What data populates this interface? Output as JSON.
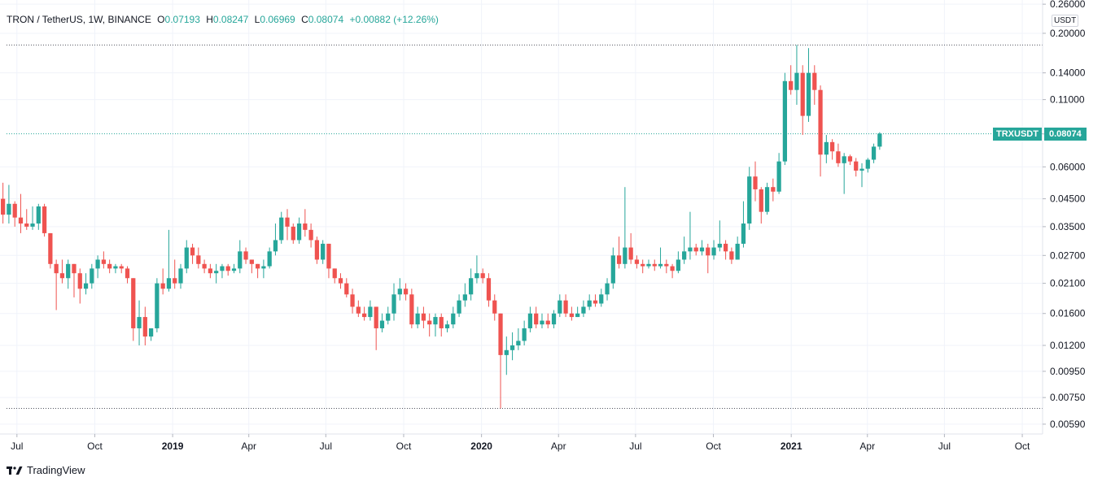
{
  "header": {
    "symbol_line": "TRON / TetherUS, 1W, BINANCE",
    "open_label": "O",
    "open": "0.07193",
    "high_label": "H",
    "high": "0.08247",
    "low_label": "L",
    "low": "0.06969",
    "close_label": "C",
    "close": "0.08074",
    "change": "+0.00882 (+12.26%)"
  },
  "price_scale": {
    "currency_badge": "USDT",
    "ticks": [
      "0.26000",
      "0.20000",
      "0.14000",
      "0.11000",
      "0.08074",
      "0.06000",
      "0.04500",
      "0.03500",
      "0.02700",
      "0.02100",
      "0.01600",
      "0.01200",
      "0.00950",
      "0.00750",
      "0.00590"
    ]
  },
  "symbol_tag": "TRXUSDT",
  "last_price": "0.08074",
  "brand": "TradingView",
  "colors": {
    "up": "#26a69a",
    "down": "#ef5350",
    "grid": "#f0f3fa",
    "text": "#131722"
  },
  "chart_data": {
    "type": "candlestick",
    "scale": "log",
    "ylim": [
      0.0054,
      0.27
    ],
    "xlim": [
      "2018-06-11",
      "2021-10-25"
    ],
    "time_ticks": [
      {
        "date": "2018-07-01",
        "label": "Jul",
        "bold": false
      },
      {
        "date": "2018-10-01",
        "label": "Oct",
        "bold": false
      },
      {
        "date": "2019-01-01",
        "label": "2019",
        "bold": true
      },
      {
        "date": "2019-04-01",
        "label": "Apr",
        "bold": false
      },
      {
        "date": "2019-07-01",
        "label": "Jul",
        "bold": false
      },
      {
        "date": "2019-10-01",
        "label": "Oct",
        "bold": false
      },
      {
        "date": "2020-01-01",
        "label": "2020",
        "bold": true
      },
      {
        "date": "2020-04-01",
        "label": "Apr",
        "bold": false
      },
      {
        "date": "2020-07-01",
        "label": "Jul",
        "bold": false
      },
      {
        "date": "2020-10-01",
        "label": "Oct",
        "bold": false
      },
      {
        "date": "2021-01-01",
        "label": "2021",
        "bold": true
      },
      {
        "date": "2021-04-01",
        "label": "Apr",
        "bold": false
      },
      {
        "date": "2021-07-01",
        "label": "Jul",
        "bold": false
      },
      {
        "date": "2021-10-01",
        "label": "Oct",
        "bold": false
      }
    ],
    "reference_lines": [
      0.18,
      0.0808,
      0.0068
    ],
    "first_candle": "2018-06-11",
    "candles": [
      [
        0.045,
        0.039,
        0.052,
        0.036
      ],
      [
        0.039,
        0.043,
        0.051,
        0.036
      ],
      [
        0.043,
        0.038,
        0.044,
        0.035
      ],
      [
        0.038,
        0.036,
        0.047,
        0.033
      ],
      [
        0.036,
        0.035,
        0.041,
        0.034
      ],
      [
        0.035,
        0.036,
        0.042,
        0.034
      ],
      [
        0.036,
        0.042,
        0.043,
        0.034
      ],
      [
        0.042,
        0.033,
        0.043,
        0.032
      ],
      [
        0.033,
        0.025,
        0.033,
        0.024
      ],
      [
        0.025,
        0.023,
        0.026,
        0.0165
      ],
      [
        0.023,
        0.022,
        0.026,
        0.021
      ],
      [
        0.022,
        0.025,
        0.026,
        0.02
      ],
      [
        0.025,
        0.023,
        0.025,
        0.0185
      ],
      [
        0.023,
        0.02,
        0.024,
        0.0175
      ],
      [
        0.02,
        0.021,
        0.023,
        0.019
      ],
      [
        0.021,
        0.024,
        0.025,
        0.02
      ],
      [
        0.024,
        0.026,
        0.027,
        0.022
      ],
      [
        0.026,
        0.025,
        0.028,
        0.024
      ],
      [
        0.025,
        0.024,
        0.026,
        0.023
      ],
      [
        0.024,
        0.0245,
        0.025,
        0.023
      ],
      [
        0.0245,
        0.024,
        0.025,
        0.023
      ],
      [
        0.024,
        0.022,
        0.0245,
        0.021
      ],
      [
        0.022,
        0.014,
        0.022,
        0.0125
      ],
      [
        0.014,
        0.0155,
        0.018,
        0.012
      ],
      [
        0.0155,
        0.013,
        0.017,
        0.012
      ],
      [
        0.013,
        0.014,
        0.014,
        0.0125
      ],
      [
        0.014,
        0.021,
        0.022,
        0.0135
      ],
      [
        0.021,
        0.02,
        0.024,
        0.019
      ],
      [
        0.02,
        0.022,
        0.034,
        0.0195
      ],
      [
        0.022,
        0.021,
        0.026,
        0.02
      ],
      [
        0.021,
        0.024,
        0.025,
        0.02
      ],
      [
        0.024,
        0.029,
        0.031,
        0.023
      ],
      [
        0.029,
        0.027,
        0.03,
        0.025
      ],
      [
        0.027,
        0.025,
        0.029,
        0.024
      ],
      [
        0.025,
        0.024,
        0.026,
        0.023
      ],
      [
        0.024,
        0.023,
        0.025,
        0.022
      ],
      [
        0.023,
        0.0235,
        0.025,
        0.021
      ],
      [
        0.0235,
        0.0245,
        0.025,
        0.022
      ],
      [
        0.0245,
        0.0235,
        0.025,
        0.0225
      ],
      [
        0.0235,
        0.024,
        0.025,
        0.023
      ],
      [
        0.024,
        0.028,
        0.031,
        0.023
      ],
      [
        0.028,
        0.026,
        0.029,
        0.025
      ],
      [
        0.026,
        0.025,
        0.026,
        0.023
      ],
      [
        0.025,
        0.024,
        0.025,
        0.022
      ],
      [
        0.024,
        0.0245,
        0.026,
        0.022
      ],
      [
        0.0245,
        0.028,
        0.029,
        0.024
      ],
      [
        0.028,
        0.031,
        0.036,
        0.027
      ],
      [
        0.031,
        0.038,
        0.04,
        0.03
      ],
      [
        0.038,
        0.035,
        0.041,
        0.031
      ],
      [
        0.035,
        0.031,
        0.036,
        0.03
      ],
      [
        0.031,
        0.036,
        0.038,
        0.03
      ],
      [
        0.036,
        0.034,
        0.041,
        0.032
      ],
      [
        0.034,
        0.031,
        0.036,
        0.029
      ],
      [
        0.031,
        0.026,
        0.032,
        0.025
      ],
      [
        0.026,
        0.03,
        0.031,
        0.025
      ],
      [
        0.03,
        0.024,
        0.03,
        0.022
      ],
      [
        0.024,
        0.022,
        0.024,
        0.021
      ],
      [
        0.022,
        0.021,
        0.023,
        0.02
      ],
      [
        0.021,
        0.019,
        0.022,
        0.0185
      ],
      [
        0.019,
        0.017,
        0.02,
        0.016
      ],
      [
        0.017,
        0.016,
        0.018,
        0.0155
      ],
      [
        0.016,
        0.0155,
        0.017,
        0.015
      ],
      [
        0.0155,
        0.017,
        0.018,
        0.015
      ],
      [
        0.017,
        0.014,
        0.017,
        0.0115
      ],
      [
        0.014,
        0.015,
        0.016,
        0.0135
      ],
      [
        0.015,
        0.016,
        0.017,
        0.0145
      ],
      [
        0.016,
        0.019,
        0.021,
        0.015
      ],
      [
        0.019,
        0.02,
        0.022,
        0.018
      ],
      [
        0.02,
        0.019,
        0.021,
        0.018
      ],
      [
        0.019,
        0.0145,
        0.02,
        0.014
      ],
      [
        0.0145,
        0.016,
        0.017,
        0.014
      ],
      [
        0.016,
        0.015,
        0.017,
        0.014
      ],
      [
        0.015,
        0.0145,
        0.016,
        0.013
      ],
      [
        0.0145,
        0.0155,
        0.016,
        0.013
      ],
      [
        0.0155,
        0.014,
        0.016,
        0.013
      ],
      [
        0.014,
        0.0145,
        0.015,
        0.0135
      ],
      [
        0.0145,
        0.016,
        0.017,
        0.014
      ],
      [
        0.016,
        0.018,
        0.019,
        0.0155
      ],
      [
        0.018,
        0.019,
        0.021,
        0.017
      ],
      [
        0.019,
        0.022,
        0.024,
        0.018
      ],
      [
        0.022,
        0.023,
        0.027,
        0.021
      ],
      [
        0.023,
        0.022,
        0.024,
        0.021
      ],
      [
        0.022,
        0.018,
        0.023,
        0.017
      ],
      [
        0.018,
        0.016,
        0.019,
        0.015
      ],
      [
        0.016,
        0.011,
        0.016,
        0.0068
      ],
      [
        0.011,
        0.0115,
        0.013,
        0.0092
      ],
      [
        0.0115,
        0.012,
        0.0135,
        0.0105
      ],
      [
        0.012,
        0.0125,
        0.014,
        0.0115
      ],
      [
        0.0125,
        0.014,
        0.015,
        0.012
      ],
      [
        0.014,
        0.016,
        0.017,
        0.0135
      ],
      [
        0.016,
        0.0145,
        0.017,
        0.014
      ],
      [
        0.0145,
        0.015,
        0.016,
        0.014
      ],
      [
        0.015,
        0.0145,
        0.016,
        0.014
      ],
      [
        0.0145,
        0.016,
        0.0165,
        0.014
      ],
      [
        0.016,
        0.018,
        0.019,
        0.0155
      ],
      [
        0.018,
        0.016,
        0.019,
        0.0155
      ],
      [
        0.016,
        0.0155,
        0.017,
        0.015
      ],
      [
        0.0155,
        0.016,
        0.017,
        0.0155
      ],
      [
        0.016,
        0.017,
        0.018,
        0.0155
      ],
      [
        0.017,
        0.018,
        0.019,
        0.0165
      ],
      [
        0.018,
        0.0175,
        0.019,
        0.017
      ],
      [
        0.0175,
        0.019,
        0.02,
        0.017
      ],
      [
        0.019,
        0.021,
        0.022,
        0.018
      ],
      [
        0.021,
        0.027,
        0.029,
        0.02
      ],
      [
        0.027,
        0.025,
        0.032,
        0.024
      ],
      [
        0.025,
        0.029,
        0.05,
        0.024
      ],
      [
        0.029,
        0.026,
        0.033,
        0.025
      ],
      [
        0.026,
        0.025,
        0.027,
        0.024
      ],
      [
        0.025,
        0.0245,
        0.026,
        0.023
      ],
      [
        0.0245,
        0.025,
        0.026,
        0.024
      ],
      [
        0.025,
        0.0245,
        0.026,
        0.0235
      ],
      [
        0.0245,
        0.025,
        0.029,
        0.024
      ],
      [
        0.025,
        0.0245,
        0.026,
        0.023
      ],
      [
        0.0245,
        0.0235,
        0.025,
        0.022
      ],
      [
        0.0235,
        0.026,
        0.028,
        0.023
      ],
      [
        0.026,
        0.028,
        0.032,
        0.025
      ],
      [
        0.028,
        0.029,
        0.04,
        0.026
      ],
      [
        0.029,
        0.028,
        0.03,
        0.027
      ],
      [
        0.028,
        0.029,
        0.031,
        0.027
      ],
      [
        0.029,
        0.027,
        0.03,
        0.023
      ],
      [
        0.027,
        0.029,
        0.031,
        0.026
      ],
      [
        0.029,
        0.03,
        0.037,
        0.028
      ],
      [
        0.03,
        0.028,
        0.031,
        0.026
      ],
      [
        0.028,
        0.026,
        0.029,
        0.025
      ],
      [
        0.026,
        0.03,
        0.032,
        0.026
      ],
      [
        0.03,
        0.036,
        0.044,
        0.029
      ],
      [
        0.036,
        0.055,
        0.06,
        0.034
      ],
      [
        0.055,
        0.049,
        0.063,
        0.044
      ],
      [
        0.049,
        0.04,
        0.05,
        0.036
      ],
      [
        0.04,
        0.05,
        0.052,
        0.039
      ],
      [
        0.05,
        0.048,
        0.054,
        0.044
      ],
      [
        0.048,
        0.063,
        0.068,
        0.047
      ],
      [
        0.063,
        0.13,
        0.14,
        0.061
      ],
      [
        0.13,
        0.12,
        0.15,
        0.115
      ],
      [
        0.12,
        0.14,
        0.18,
        0.105
      ],
      [
        0.14,
        0.095,
        0.15,
        0.08
      ],
      [
        0.095,
        0.14,
        0.175,
        0.09
      ],
      [
        0.14,
        0.12,
        0.15,
        0.105
      ],
      [
        0.12,
        0.067,
        0.125,
        0.055
      ],
      [
        0.067,
        0.075,
        0.08,
        0.062
      ],
      [
        0.075,
        0.069,
        0.077,
        0.064
      ],
      [
        0.069,
        0.062,
        0.074,
        0.06
      ],
      [
        0.062,
        0.066,
        0.068,
        0.047
      ],
      [
        0.066,
        0.063,
        0.067,
        0.061
      ],
      [
        0.063,
        0.058,
        0.065,
        0.055
      ],
      [
        0.058,
        0.059,
        0.062,
        0.05
      ],
      [
        0.059,
        0.064,
        0.065,
        0.057
      ],
      [
        0.064,
        0.072,
        0.074,
        0.062
      ],
      [
        0.072,
        0.081,
        0.082,
        0.07
      ]
    ]
  }
}
